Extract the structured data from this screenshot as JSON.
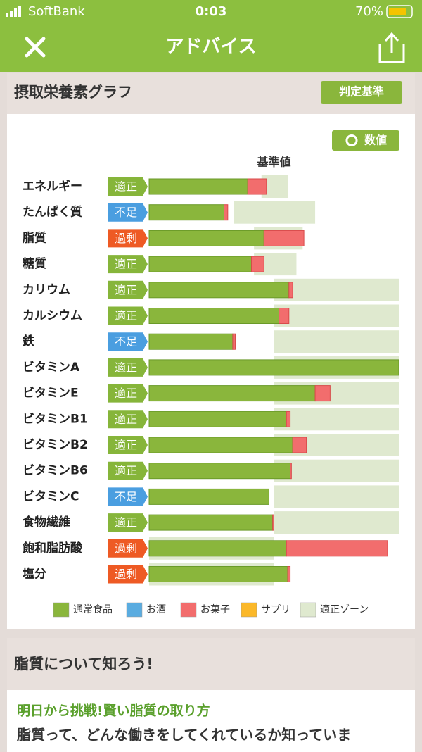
{
  "status_bar": {
    "carrier": "SoftBank",
    "time": "0:03",
    "battery": "70%"
  },
  "header": {
    "title": "アドバイス"
  },
  "card": {
    "title": "摂取栄養素グラフ",
    "criteria_button": "判定基準",
    "number_button": "数値"
  },
  "chart_data": {
    "type": "hbar-stack-zone",
    "reference_label": "基準値",
    "reference": 100,
    "xlim": [
      0,
      200
    ],
    "categories": [
      "エネルギー",
      "たんぱく質",
      "脂質",
      "糖質",
      "カリウム",
      "カルシウム",
      "鉄",
      "ビタミンA",
      "ビタミンE",
      "ビタミンB1",
      "ビタミンB2",
      "ビタミンB6",
      "ビタミンC",
      "食物繊維",
      "飽和脂肪酸",
      "塩分"
    ],
    "status": [
      "適正",
      "不足",
      "過剰",
      "適正",
      "適正",
      "適正",
      "不足",
      "適正",
      "適正",
      "適正",
      "適正",
      "適正",
      "不足",
      "適正",
      "過剰",
      "過剰"
    ],
    "status_colors": {
      "適正": "#86b53a",
      "不足": "#4a9ee0",
      "過剰": "#ee5a24"
    },
    "series": [
      {
        "name": "通常食品",
        "color": "#8ab63c",
        "values": [
          79,
          60,
          92,
          82,
          112,
          104,
          67,
          200,
          133,
          110,
          115,
          113,
          96,
          99,
          110,
          111
        ]
      },
      {
        "name": "お酒",
        "color": "#5aace0",
        "values": [
          0,
          0,
          0,
          0,
          0,
          0,
          0,
          0,
          0,
          0,
          0,
          0,
          0,
          0,
          0,
          0
        ]
      },
      {
        "name": "お菓子",
        "color": "#f26d6d",
        "values": [
          15,
          3,
          32,
          10,
          3,
          8,
          2,
          0,
          12,
          3,
          11,
          1,
          0,
          1,
          81,
          2
        ]
      },
      {
        "name": "サプリ",
        "color": "#fbb829",
        "values": [
          0,
          0,
          0,
          0,
          0,
          0,
          0,
          0,
          0,
          0,
          0,
          0,
          0,
          0,
          0,
          0
        ]
      },
      {
        "name": "適正ゾーン",
        "color": "#dfe9cf",
        "low": [
          90,
          68,
          84,
          84,
          100,
          100,
          100,
          100,
          100,
          100,
          100,
          100,
          100,
          100,
          0,
          0
        ],
        "high": [
          111,
          133,
          123,
          118,
          200,
          200,
          200,
          200,
          200,
          200,
          200,
          200,
          200,
          200,
          100,
          100
        ]
      }
    ]
  },
  "article": {
    "title": "脂質について知ろう!",
    "link": "明日から挑戦!賢い脂質の取り方",
    "text": "脂質って、どんな働きをしてくれているか知っていま"
  }
}
